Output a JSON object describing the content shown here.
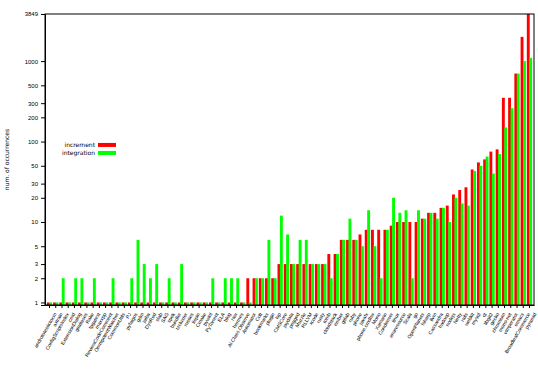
{
  "chart_data": {
    "type": "bar",
    "y_label": "num. of occurrences",
    "log": "y",
    "legend": "left",
    "categories": [
      "andrototestictocm",
      "axtrain",
      "ConfigScriptsIndex",
      "cmd",
      "ExtensionDialog",
      "gitaliases",
      "Rake",
      "fpgatest",
      "maxxpp",
      "ReviewCodeComment",
      "OmnipotentWatcher",
      "CommonUtils",
      "PJ",
      "pyfaigos",
      "gdm",
      "jaiba",
      "DysRed",
      "slab",
      "SAG",
      "spek",
      "bundler",
      "tzcluster",
      "rusties",
      "lispin",
      "Cmake",
      "pywinl",
      "PyTorrent",
      "ELA",
      "blog",
      "raw",
      "hermes",
      "AI.Class.Observe",
      "Automator",
      "Colt",
      "bookmarks",
      "plugin",
      "lsp",
      "CMSCore",
      "jaydata",
      "pegged",
      "Muzzle",
      "RLLVM",
      "xcode",
      "rusty",
      "tomb",
      "cloudstack",
      "ember",
      "gitlab",
      "ruby",
      "phone",
      "javafx",
      "phone.cmdhw",
      "Mono",
      "Xamarin",
      "Condenser",
      "linux",
      "enaresource",
      "Scala",
      "go",
      "OpenPlanets",
      "fsharp",
      "llvm",
      "Cassandra",
      "hadoop",
      "nodejs",
      "Netty",
      "rails",
      "webkit",
      "mysql",
      "qt",
      "libgit2",
      "gecko",
      "chromium",
      "mono-net",
      "vimperator",
      "emacs",
      "BroadleafCommerce",
      "pyramid"
    ],
    "series": [
      {
        "name": "increment",
        "color": "#ff0000",
        "values": [
          1,
          1,
          1,
          1,
          1,
          1,
          1,
          1,
          1,
          1,
          1,
          1,
          1,
          1,
          1,
          1,
          1,
          1,
          1,
          1,
          1,
          1,
          1,
          1,
          1,
          1,
          1,
          1,
          1,
          1,
          1,
          1,
          2,
          2,
          2,
          2,
          2,
          3,
          3,
          3,
          3,
          3,
          3,
          3,
          3,
          4,
          4,
          6,
          6,
          6,
          7,
          8,
          8,
          8,
          8,
          9,
          10,
          10,
          10,
          10,
          11,
          13,
          13,
          15,
          16,
          22,
          25,
          27,
          45,
          55,
          60,
          75,
          80,
          350,
          350,
          700,
          2000,
          3849
        ]
      },
      {
        "name": "integration",
        "color": "#00ff00",
        "values": [
          1,
          1,
          2,
          1,
          2,
          2,
          1,
          2,
          1,
          1,
          2,
          1,
          1,
          2,
          6,
          3,
          2,
          3,
          1,
          2,
          1,
          3,
          1,
          1,
          1,
          1,
          2,
          1,
          2,
          2,
          2,
          1,
          1,
          2,
          2,
          6,
          2,
          12,
          7,
          3,
          6,
          6,
          3,
          3,
          3,
          2,
          4,
          6,
          11,
          6,
          5,
          14,
          5,
          2,
          8,
          20,
          13,
          14,
          2,
          14,
          11,
          13,
          11,
          15,
          10,
          20,
          17,
          16,
          43,
          50,
          65,
          40,
          70,
          150,
          260,
          700,
          1000,
          1100
        ]
      }
    ],
    "ylim": [
      0.93,
      3849
    ],
    "yticks": [
      1,
      2,
      3,
      5,
      10,
      20,
      30,
      50,
      100,
      200,
      300,
      500,
      1000,
      3849
    ]
  }
}
